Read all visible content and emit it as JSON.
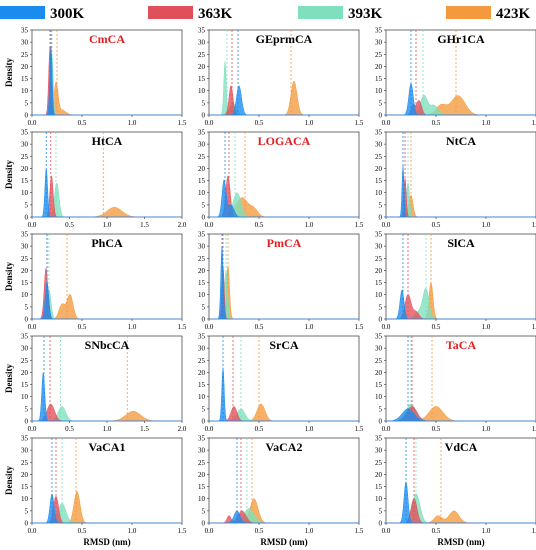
{
  "legend": [
    {
      "label": "300K",
      "color": "#1a8cf0"
    },
    {
      "label": "363K",
      "color": "#e0505a"
    },
    {
      "label": "393K",
      "color": "#7ee0bc"
    },
    {
      "label": "423K",
      "color": "#f59a3c"
    }
  ],
  "axis_text": {
    "ylabel": "Density",
    "xlabel": "RMSD (nm)"
  },
  "chart_data": [
    {
      "type": "area",
      "title": "CmCA",
      "title_color": "#e02020",
      "xlim": [
        0,
        1.5
      ],
      "ylim": [
        0,
        35
      ],
      "xticks": [
        "0.0",
        "0.5",
        "1.0",
        "1.5"
      ],
      "yticks": [
        "0",
        "5",
        "10",
        "15",
        "20",
        "25",
        "30",
        "35"
      ],
      "series": [
        {
          "name": "300K",
          "peaks": [
            [
              0.19,
              28,
              0.012
            ]
          ],
          "mean": 0.19
        },
        {
          "name": "363K",
          "peaks": [
            [
              0.18,
              28,
              0.013
            ]
          ],
          "mean": 0.18
        },
        {
          "name": "393K",
          "peaks": [
            [
              0.2,
              25,
              0.012
            ]
          ],
          "mean": 0.2
        },
        {
          "name": "423K",
          "peaks": [
            [
              0.24,
              13,
              0.02
            ],
            [
              0.3,
              2,
              0.04
            ]
          ],
          "mean": 0.25
        }
      ]
    },
    {
      "type": "area",
      "title": "GEprmCA",
      "title_color": "#000000",
      "xlim": [
        0,
        1.5
      ],
      "ylim": [
        0,
        35
      ],
      "xticks": [
        "0.0",
        "0.5",
        "1.0",
        "1.5"
      ],
      "yticks": [
        "0",
        "5",
        "10",
        "15",
        "20",
        "25",
        "30",
        "35"
      ],
      "series": [
        {
          "name": "300K",
          "peaks": [
            [
              0.3,
              12,
              0.025
            ]
          ],
          "mean": 0.29
        },
        {
          "name": "363K",
          "peaks": [
            [
              0.22,
              12,
              0.02
            ]
          ],
          "mean": 0.23
        },
        {
          "name": "393K",
          "peaks": [
            [
              0.16,
              22,
              0.012
            ],
            [
              0.24,
              5,
              0.03
            ]
          ],
          "mean": 0.18
        },
        {
          "name": "423K",
          "peaks": [
            [
              0.85,
              14,
              0.03
            ],
            [
              0.22,
              3,
              0.03
            ]
          ],
          "mean": 0.82
        }
      ]
    },
    {
      "type": "area",
      "title": "GHr1CA",
      "title_color": "#000000",
      "xlim": [
        0,
        1.5
      ],
      "ylim": [
        0,
        35
      ],
      "xticks": [
        "0.0",
        "0.5",
        "1.0",
        "1.5"
      ],
      "yticks": [
        "0",
        "5",
        "10",
        "15",
        "20",
        "25",
        "30",
        "35"
      ],
      "series": [
        {
          "name": "300K",
          "peaks": [
            [
              0.25,
              13,
              0.022
            ]
          ],
          "mean": 0.25
        },
        {
          "name": "363K",
          "peaks": [
            [
              0.33,
              6,
              0.025
            ],
            [
              0.27,
              4,
              0.02
            ]
          ],
          "mean": 0.3
        },
        {
          "name": "393K",
          "peaks": [
            [
              0.38,
              8,
              0.035
            ],
            [
              0.48,
              4,
              0.04
            ]
          ],
          "mean": 0.37
        },
        {
          "name": "423K",
          "peaks": [
            [
              0.72,
              8,
              0.07
            ],
            [
              0.55,
              4,
              0.05
            ]
          ],
          "mean": 0.7
        }
      ]
    },
    {
      "type": "area",
      "title": "HtCA",
      "title_color": "#000000",
      "xlim": [
        0,
        2.0
      ],
      "ylim": [
        0,
        35
      ],
      "xticks": [
        "0.0",
        "0.5",
        "1.0",
        "1.5",
        "2.0"
      ],
      "yticks": [
        "0",
        "5",
        "10",
        "15",
        "20",
        "25",
        "30",
        "35"
      ],
      "series": [
        {
          "name": "300K",
          "peaks": [
            [
              0.19,
              20,
              0.018
            ]
          ],
          "mean": 0.19
        },
        {
          "name": "363K",
          "peaks": [
            [
              0.26,
              17,
              0.022
            ]
          ],
          "mean": 0.25
        },
        {
          "name": "393K",
          "peaks": [
            [
              0.33,
              14,
              0.03
            ]
          ],
          "mean": 0.32
        },
        {
          "name": "423K",
          "peaks": [
            [
              1.1,
              4,
              0.1
            ]
          ],
          "mean": 0.95
        }
      ]
    },
    {
      "type": "area",
      "title": "LOGACA",
      "title_color": "#e02020",
      "xlim": [
        0,
        1.5
      ],
      "ylim": [
        0,
        35
      ],
      "xticks": [
        "0.0",
        "0.5",
        "1.0",
        "1.5"
      ],
      "yticks": [
        "0",
        "5",
        "10",
        "15",
        "20",
        "25",
        "30",
        "35"
      ],
      "series": [
        {
          "name": "300K",
          "peaks": [
            [
              0.15,
              15,
              0.02
            ],
            [
              0.22,
              5,
              0.03
            ]
          ],
          "mean": 0.16
        },
        {
          "name": "363K",
          "peaks": [
            [
              0.19,
              17,
              0.022
            ]
          ],
          "mean": 0.2
        },
        {
          "name": "393K",
          "peaks": [
            [
              0.28,
              10,
              0.04
            ]
          ],
          "mean": 0.26
        },
        {
          "name": "423K",
          "peaks": [
            [
              0.33,
              8,
              0.06
            ],
            [
              0.45,
              3,
              0.04
            ]
          ],
          "mean": 0.36
        }
      ]
    },
    {
      "type": "area",
      "title": "NtCA",
      "title_color": "#000000",
      "xlim": [
        0,
        1.5
      ],
      "ylim": [
        0,
        35
      ],
      "xticks": [
        "0.0",
        "0.5",
        "1.0",
        "1.5"
      ],
      "yticks": [
        "0",
        "5",
        "10",
        "15",
        "20",
        "25",
        "30",
        "35"
      ],
      "series": [
        {
          "name": "300K",
          "peaks": [
            [
              0.17,
              21,
              0.01
            ]
          ],
          "mean": 0.17
        },
        {
          "name": "363K",
          "peaks": [
            [
              0.19,
              16,
              0.012
            ]
          ],
          "mean": 0.19
        },
        {
          "name": "393K",
          "peaks": [
            [
              0.22,
              14,
              0.015
            ]
          ],
          "mean": 0.22
        },
        {
          "name": "423K",
          "peaks": [
            [
              0.25,
              9,
              0.02
            ]
          ],
          "mean": 0.25
        }
      ]
    },
    {
      "type": "area",
      "title": "PhCA",
      "title_color": "#000000",
      "xlim": [
        0,
        1.5
      ],
      "ylim": [
        0,
        35
      ],
      "xticks": [
        "0.0",
        "0.5",
        "1.0",
        "1.5"
      ],
      "yticks": [
        "0",
        "5",
        "10",
        "15",
        "20",
        "25",
        "30",
        "35"
      ],
      "series": [
        {
          "name": "300K",
          "peaks": [
            [
              0.15,
              15,
              0.018
            ]
          ],
          "mean": 0.15
        },
        {
          "name": "363K",
          "peaks": [
            [
              0.14,
              21,
              0.018
            ]
          ],
          "mean": 0.15
        },
        {
          "name": "393K",
          "peaks": [
            [
              0.17,
              12,
              0.02
            ]
          ],
          "mean": 0.17
        },
        {
          "name": "423K",
          "peaks": [
            [
              0.38,
              10,
              0.03
            ],
            [
              0.3,
              6,
              0.03
            ]
          ],
          "mean": 0.35
        }
      ]
    },
    {
      "type": "area",
      "title": "PmCA",
      "title_color": "#e02020",
      "xlim": [
        0,
        1.5
      ],
      "ylim": [
        0,
        35
      ],
      "xticks": [
        "0.0",
        "0.5",
        "1.0",
        "1.5"
      ],
      "yticks": [
        "0",
        "5",
        "10",
        "15",
        "20",
        "25",
        "30",
        "35"
      ],
      "series": [
        {
          "name": "300K",
          "peaks": [
            [
              0.13,
              30,
              0.012
            ]
          ],
          "mean": 0.13
        },
        {
          "name": "363K",
          "peaks": [
            [
              0.14,
              22,
              0.012
            ]
          ],
          "mean": 0.14
        },
        {
          "name": "393K",
          "peaks": [
            [
              0.17,
              20,
              0.015
            ]
          ],
          "mean": 0.17
        },
        {
          "name": "423K",
          "peaks": [
            [
              0.19,
              22,
              0.015
            ]
          ],
          "mean": 0.19
        }
      ]
    },
    {
      "type": "area",
      "title": "SlCA",
      "title_color": "#000000",
      "xlim": [
        0,
        1.5
      ],
      "ylim": [
        0,
        35
      ],
      "xticks": [
        "0.0",
        "0.5",
        "1.0",
        "1.5"
      ],
      "yticks": [
        "0",
        "5",
        "10",
        "15",
        "20",
        "25",
        "30",
        "35"
      ],
      "series": [
        {
          "name": "300K",
          "peaks": [
            [
              0.16,
              12,
              0.02
            ]
          ],
          "mean": 0.17
        },
        {
          "name": "363K",
          "peaks": [
            [
              0.22,
              10,
              0.03
            ],
            [
              0.3,
              3,
              0.03
            ]
          ],
          "mean": 0.22
        },
        {
          "name": "393K",
          "peaks": [
            [
              0.4,
              12,
              0.03
            ],
            [
              0.33,
              3,
              0.04
            ]
          ],
          "mean": 0.4
        },
        {
          "name": "423K",
          "peaks": [
            [
              0.45,
              15,
              0.02
            ]
          ],
          "mean": 0.45
        }
      ]
    },
    {
      "type": "area",
      "title": "SNbcCA",
      "title_color": "#000000",
      "xlim": [
        0,
        2.0
      ],
      "ylim": [
        0,
        35
      ],
      "xticks": [
        "0.0",
        "0.5",
        "1.0",
        "1.5",
        "2.0"
      ],
      "yticks": [
        "0",
        "5",
        "10",
        "15",
        "20",
        "25",
        "30",
        "35"
      ],
      "series": [
        {
          "name": "300K",
          "peaks": [
            [
              0.15,
              20,
              0.02
            ]
          ],
          "mean": 0.16
        },
        {
          "name": "363K",
          "peaks": [
            [
              0.25,
              7,
              0.05
            ]
          ],
          "mean": 0.24
        },
        {
          "name": "393K",
          "peaks": [
            [
              0.4,
              6,
              0.05
            ]
          ],
          "mean": 0.38
        },
        {
          "name": "423K",
          "peaks": [
            [
              1.35,
              4,
              0.1
            ]
          ],
          "mean": 1.27
        }
      ]
    },
    {
      "type": "area",
      "title": "SrCA",
      "title_color": "#000000",
      "xlim": [
        0,
        1.5
      ],
      "ylim": [
        0,
        35
      ],
      "xticks": [
        "0.0",
        "0.5",
        "1.0",
        "1.5"
      ],
      "yticks": [
        "0",
        "5",
        "10",
        "15",
        "20",
        "25",
        "30",
        "35"
      ],
      "series": [
        {
          "name": "300K",
          "peaks": [
            [
              0.14,
              22,
              0.012
            ]
          ],
          "mean": 0.14
        },
        {
          "name": "363K",
          "peaks": [
            [
              0.25,
              6,
              0.03
            ]
          ],
          "mean": 0.24
        },
        {
          "name": "393K",
          "peaks": [
            [
              0.32,
              5,
              0.04
            ]
          ],
          "mean": 0.32
        },
        {
          "name": "423K",
          "peaks": [
            [
              0.52,
              7,
              0.04
            ]
          ],
          "mean": 0.5
        }
      ]
    },
    {
      "type": "area",
      "title": "TaCA",
      "title_color": "#e02020",
      "xlim": [
        0,
        1.5
      ],
      "ylim": [
        0,
        35
      ],
      "xticks": [
        "0.0",
        "0.5",
        "1.0",
        "1.5"
      ],
      "yticks": [
        "0",
        "5",
        "10",
        "15",
        "20",
        "25",
        "30",
        "35"
      ],
      "series": [
        {
          "name": "300K",
          "peaks": [
            [
              0.22,
              5,
              0.06
            ]
          ],
          "mean": 0.22
        },
        {
          "name": "363K",
          "peaks": [
            [
              0.26,
              6,
              0.05
            ]
          ],
          "mean": 0.26
        },
        {
          "name": "393K",
          "peaks": [
            [
              0.25,
              7,
              0.05
            ]
          ],
          "mean": 0.25
        },
        {
          "name": "423K",
          "peaks": [
            [
              0.5,
              6,
              0.07
            ]
          ],
          "mean": 0.46
        }
      ]
    },
    {
      "type": "area",
      "title": "VaCA1",
      "title_color": "#000000",
      "xlim": [
        0,
        1.5
      ],
      "ylim": [
        0,
        35
      ],
      "xticks": [
        "0.0",
        "0.5",
        "1.0",
        "1.5"
      ],
      "yticks": [
        "0",
        "5",
        "10",
        "15",
        "20",
        "25",
        "30",
        "35"
      ],
      "series": [
        {
          "name": "300K",
          "peaks": [
            [
              0.2,
              12,
              0.02
            ]
          ],
          "mean": 0.2
        },
        {
          "name": "363K",
          "peaks": [
            [
              0.24,
              11,
              0.025
            ]
          ],
          "mean": 0.24
        },
        {
          "name": "393K",
          "peaks": [
            [
              0.3,
              8,
              0.04
            ]
          ],
          "mean": 0.3
        },
        {
          "name": "423K",
          "peaks": [
            [
              0.45,
              13,
              0.03
            ]
          ],
          "mean": 0.44
        }
      ]
    },
    {
      "type": "area",
      "title": "VaCA2",
      "title_color": "#000000",
      "xlim": [
        0,
        1.5
      ],
      "ylim": [
        0,
        35
      ],
      "xticks": [
        "0.0",
        "0.5",
        "1.0",
        "1.5"
      ],
      "yticks": [
        "0",
        "5",
        "10",
        "15",
        "20",
        "25",
        "30",
        "35"
      ],
      "series": [
        {
          "name": "300K",
          "peaks": [
            [
              0.28,
              5,
              0.03
            ]
          ],
          "mean": 0.28
        },
        {
          "name": "363K",
          "peaks": [
            [
              0.33,
              5,
              0.04
            ],
            [
              0.2,
              3,
              0.02
            ]
          ],
          "mean": 0.32
        },
        {
          "name": "393K",
          "peaks": [
            [
              0.4,
              6,
              0.05
            ]
          ],
          "mean": 0.38
        },
        {
          "name": "423K",
          "peaks": [
            [
              0.45,
              10,
              0.04
            ]
          ],
          "mean": 0.43
        }
      ]
    },
    {
      "type": "area",
      "title": "VdCA",
      "title_color": "#000000",
      "xlim": [
        0,
        1.5
      ],
      "ylim": [
        0,
        35
      ],
      "xticks": [
        "0.0",
        "0.5",
        "1.0",
        "1.5"
      ],
      "yticks": [
        "0",
        "5",
        "10",
        "15",
        "20",
        "25",
        "30",
        "35"
      ],
      "series": [
        {
          "name": "300K",
          "peaks": [
            [
              0.2,
              17,
              0.02
            ]
          ],
          "mean": 0.2
        },
        {
          "name": "363K",
          "peaks": [
            [
              0.28,
              10,
              0.03
            ]
          ],
          "mean": 0.28
        },
        {
          "name": "393K",
          "peaks": [
            [
              0.3,
              12,
              0.04
            ]
          ],
          "mean": 0.3
        },
        {
          "name": "423K",
          "peaks": [
            [
              0.68,
              5,
              0.05
            ],
            [
              0.52,
              3,
              0.04
            ]
          ],
          "mean": 0.55
        }
      ]
    }
  ]
}
